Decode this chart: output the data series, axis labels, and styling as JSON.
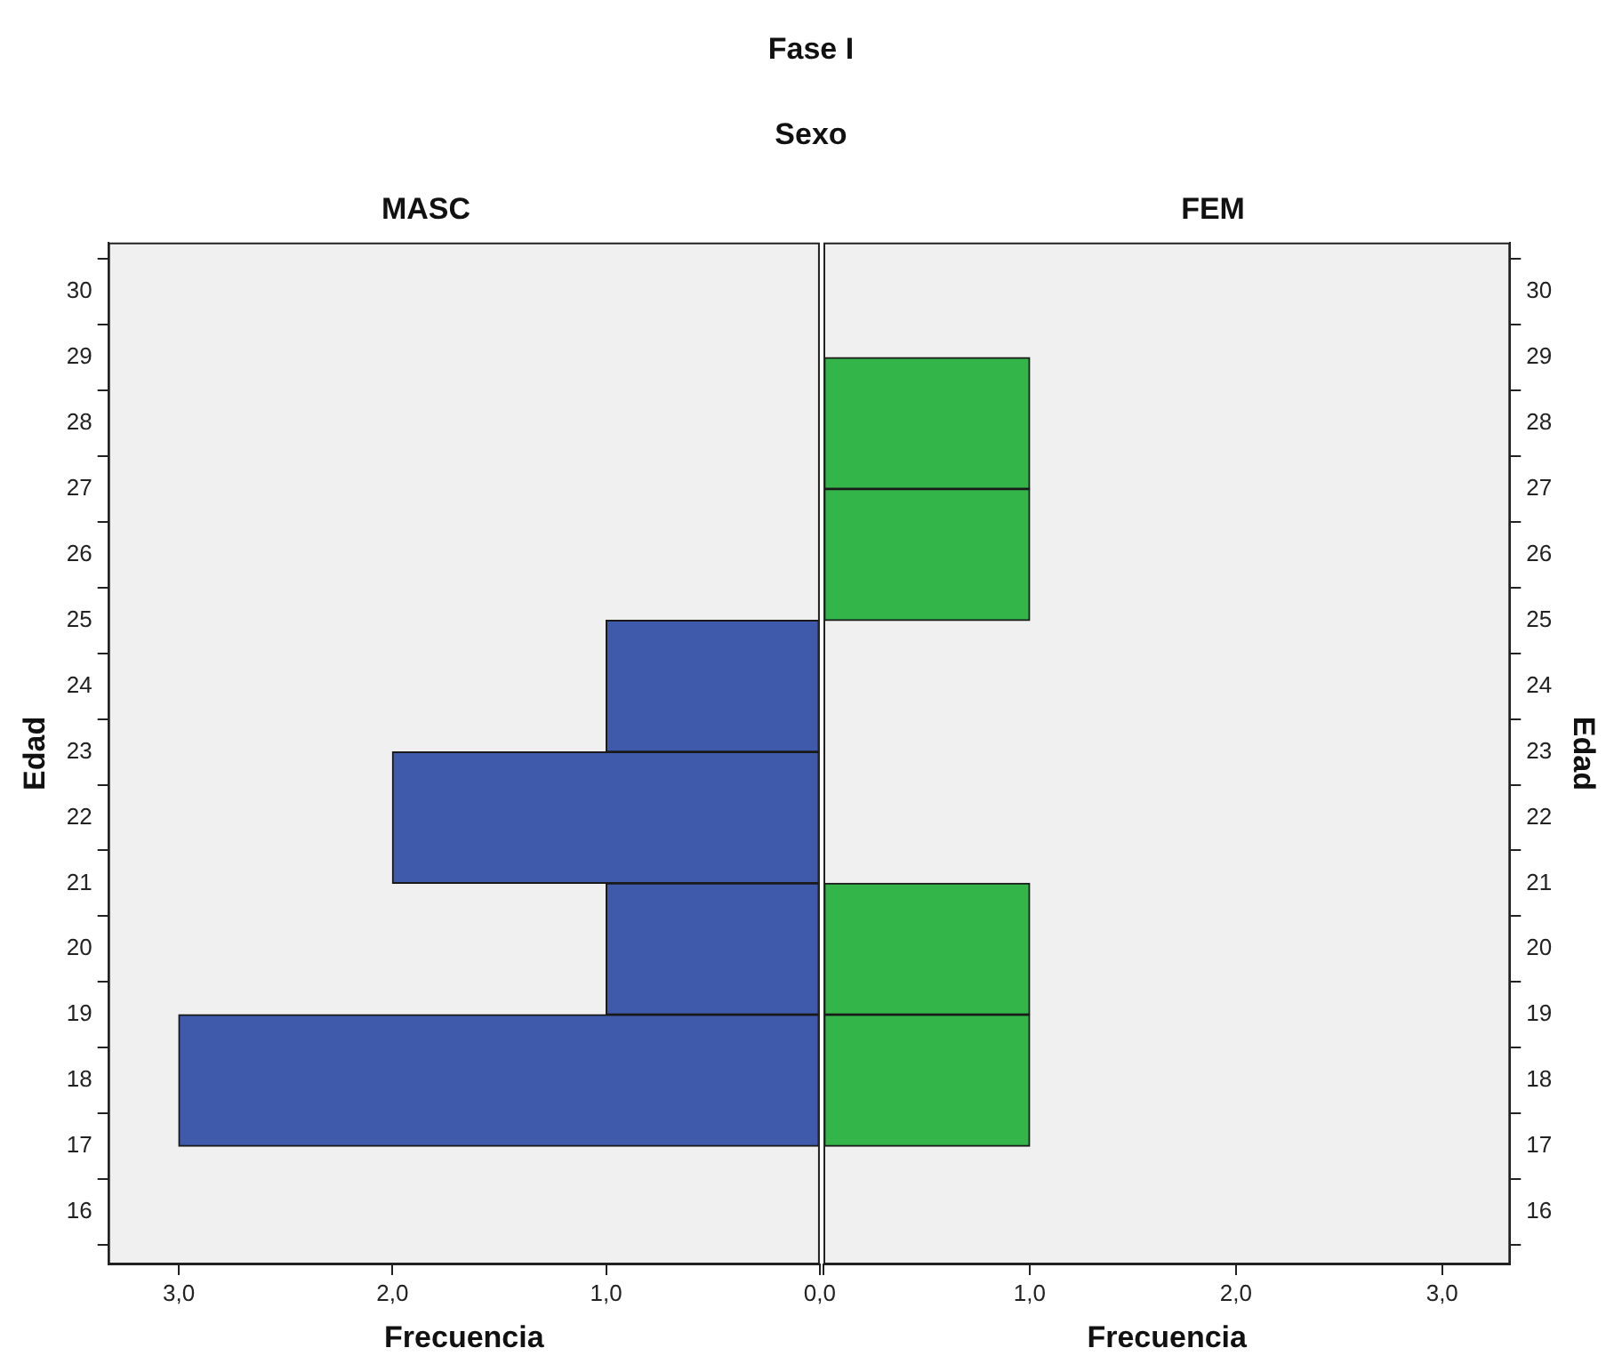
{
  "chart_data": [
    {
      "type": "other",
      "title": "Fase I",
      "subtitle": "Sexo"
    },
    {
      "type": "histogram",
      "title": "MASC",
      "xlabel": "Frecuencia",
      "ylabel": "Edad",
      "orientation": "horizontal",
      "color": "#3f59ab",
      "bins": [
        17,
        19,
        21,
        23,
        25,
        27,
        29
      ],
      "values": [
        3,
        1,
        2,
        1,
        0,
        0
      ],
      "xlim": [
        3.33,
        0
      ],
      "xticks": [
        {
          "value": 3,
          "label": "3,0"
        },
        {
          "value": 2,
          "label": "2,0"
        },
        {
          "value": 1,
          "label": "1,0"
        },
        {
          "value": 0,
          "label": "0,0"
        }
      ],
      "ylim": [
        15.2,
        30.75
      ],
      "yticks": [
        16,
        17,
        18,
        19,
        20,
        21,
        22,
        23,
        24,
        25,
        26,
        27,
        28,
        29,
        30
      ]
    },
    {
      "type": "histogram",
      "title": "FEM",
      "xlabel": "Frecuencia",
      "ylabel": "Edad",
      "orientation": "horizontal",
      "color": "#33b54a",
      "bins": [
        17,
        19,
        21,
        23,
        25,
        27,
        29
      ],
      "values": [
        1,
        1,
        0,
        0,
        1,
        1
      ],
      "xlim": [
        0,
        3.33
      ],
      "xticks": [
        {
          "value": 0,
          "label": null
        },
        {
          "value": 1,
          "label": "1,0"
        },
        {
          "value": 2,
          "label": "2,0"
        },
        {
          "value": 3,
          "label": "3,0"
        }
      ],
      "ylim": [
        15.2,
        30.75
      ],
      "yticks": [
        16,
        17,
        18,
        19,
        20,
        21,
        22,
        23,
        24,
        25,
        26,
        27,
        28,
        29,
        30
      ]
    }
  ]
}
